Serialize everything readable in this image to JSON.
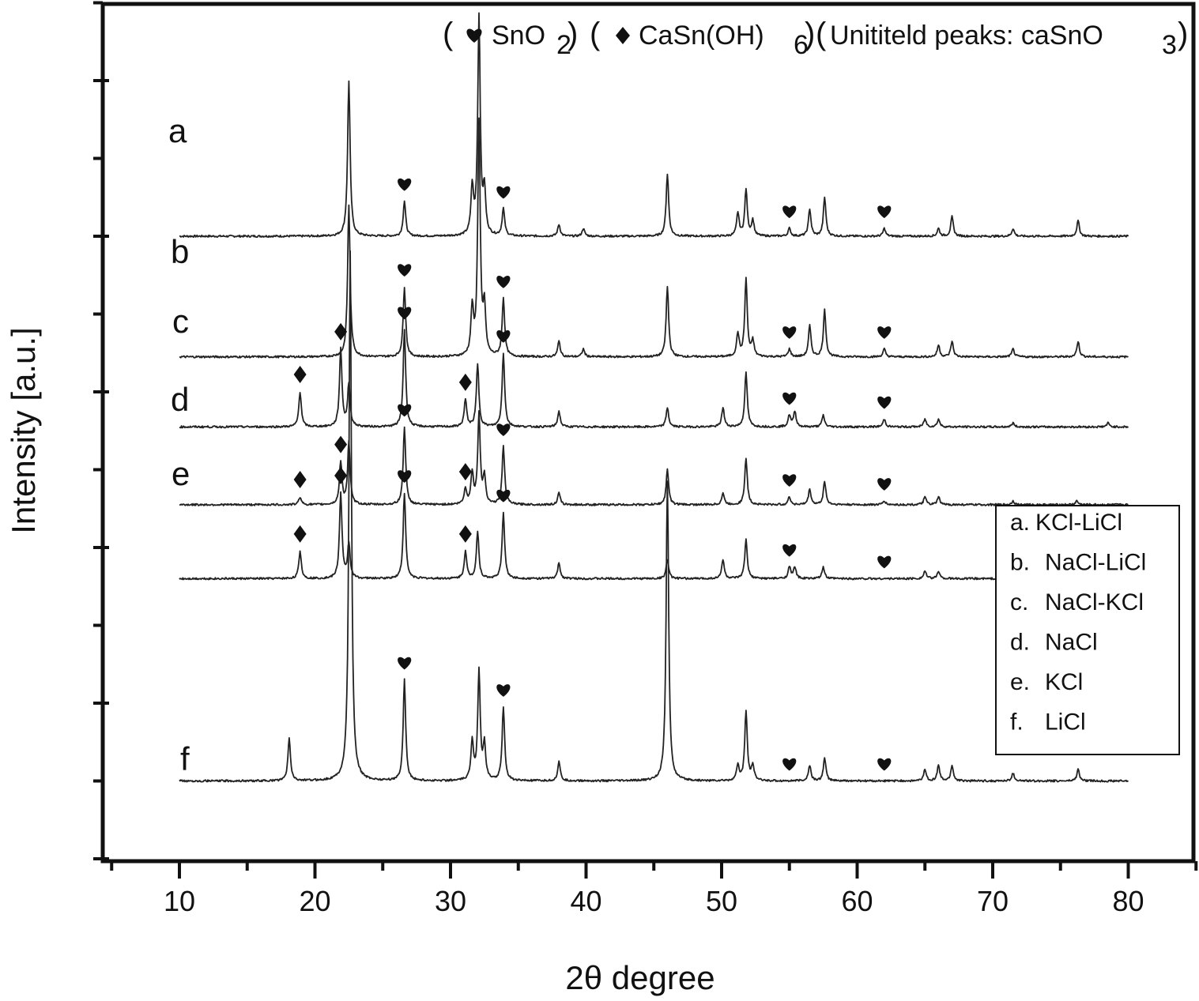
{
  "chart_data": {
    "type": "line",
    "xlabel": "2θ degree",
    "ylabel": "Intensity [a.u.]",
    "xlim": [
      5,
      85
    ],
    "x_ticks": [
      10,
      20,
      30,
      40,
      50,
      60,
      70,
      80
    ],
    "x_tick_labels": [
      "10",
      "20",
      "30",
      "40",
      "50",
      "60",
      "70",
      "80"
    ],
    "y_tick_labels_shown": false,
    "grid": false,
    "legend_position": "lower-right",
    "legend": [
      {
        "key": "a.",
        "label": "KCl-LiCl"
      },
      {
        "key": "b.",
        "label": "NaCl-LiCl"
      },
      {
        "key": "c.",
        "label": "NaCl-KCl"
      },
      {
        "key": "d.",
        "label": "NaCl"
      },
      {
        "key": "e.",
        "label": "KCl"
      },
      {
        "key": "f.",
        "label": "LiCl"
      }
    ],
    "marker_key": {
      "sno2_label": "SnO",
      "sno2_sub": "2",
      "casn_label": "CaSn(OH)",
      "casn_sub": "6",
      "unidentified_label": "Unititeld peaks: caSnO",
      "unidentified_sub": "3"
    },
    "x_range": [
      10,
      80
    ],
    "series": [
      {
        "name": "a",
        "offset": 8,
        "peaks": [
          [
            22.5,
            2.0
          ],
          [
            26.6,
            0.45
          ],
          [
            31.6,
            0.6
          ],
          [
            32.1,
            2.8
          ],
          [
            32.5,
            0.55
          ],
          [
            33.9,
            0.35
          ],
          [
            38.0,
            0.15
          ],
          [
            39.8,
            0.1
          ],
          [
            46.0,
            0.8
          ],
          [
            51.2,
            0.3
          ],
          [
            51.8,
            0.6
          ],
          [
            52.3,
            0.2
          ],
          [
            55.0,
            0.1
          ],
          [
            56.5,
            0.35
          ],
          [
            57.6,
            0.5
          ],
          [
            62.0,
            0.1
          ],
          [
            66.0,
            0.1
          ],
          [
            67.0,
            0.25
          ],
          [
            71.5,
            0.1
          ],
          [
            76.3,
            0.2
          ]
        ]
      },
      {
        "name": "b",
        "offset": 6.45,
        "peaks": [
          [
            22.5,
            1.95
          ],
          [
            26.6,
            0.9
          ],
          [
            31.6,
            0.6
          ],
          [
            32.1,
            3.0
          ],
          [
            32.5,
            0.6
          ],
          [
            33.9,
            0.75
          ],
          [
            38.0,
            0.2
          ],
          [
            39.8,
            0.1
          ],
          [
            46.0,
            0.9
          ],
          [
            51.2,
            0.3
          ],
          [
            51.8,
            1.0
          ],
          [
            52.3,
            0.2
          ],
          [
            55.0,
            0.1
          ],
          [
            56.5,
            0.4
          ],
          [
            57.6,
            0.6
          ],
          [
            62.0,
            0.1
          ],
          [
            66.0,
            0.15
          ],
          [
            67.0,
            0.2
          ],
          [
            71.5,
            0.1
          ],
          [
            76.3,
            0.2
          ]
        ]
      },
      {
        "name": "c",
        "offset": 5.55,
        "peaks": [
          [
            18.9,
            0.45
          ],
          [
            21.9,
            1.0
          ],
          [
            22.5,
            0.55
          ],
          [
            26.6,
            1.25
          ],
          [
            31.1,
            0.35
          ],
          [
            32.0,
            0.8
          ],
          [
            33.9,
            0.95
          ],
          [
            38.0,
            0.2
          ],
          [
            46.0,
            0.25
          ],
          [
            50.1,
            0.25
          ],
          [
            51.8,
            0.7
          ],
          [
            55.0,
            0.15
          ],
          [
            55.4,
            0.2
          ],
          [
            57.5,
            0.15
          ],
          [
            62.0,
            0.1
          ],
          [
            65.0,
            0.1
          ],
          [
            66.0,
            0.1
          ],
          [
            71.5,
            0.05
          ],
          [
            78.5,
            0.05
          ]
        ]
      },
      {
        "name": "d",
        "offset": 4.55,
        "peaks": [
          [
            18.9,
            0.1
          ],
          [
            21.9,
            0.55
          ],
          [
            22.5,
            0.8
          ],
          [
            26.6,
            1.0
          ],
          [
            31.1,
            0.2
          ],
          [
            31.6,
            0.4
          ],
          [
            32.1,
            1.15
          ],
          [
            32.5,
            0.35
          ],
          [
            33.9,
            0.75
          ],
          [
            38.0,
            0.15
          ],
          [
            46.0,
            0.45
          ],
          [
            50.1,
            0.15
          ],
          [
            51.8,
            0.6
          ],
          [
            55.0,
            0.1
          ],
          [
            56.5,
            0.2
          ],
          [
            57.6,
            0.3
          ],
          [
            62.0,
            0.05
          ],
          [
            65.0,
            0.1
          ],
          [
            66.0,
            0.1
          ],
          [
            71.5,
            0.05
          ],
          [
            76.2,
            0.05
          ]
        ]
      },
      {
        "name": "e",
        "offset": 3.6,
        "peaks": [
          [
            18.9,
            0.35
          ],
          [
            21.9,
            1.1
          ],
          [
            22.5,
            0.45
          ],
          [
            26.6,
            1.1
          ],
          [
            31.1,
            0.35
          ],
          [
            32.0,
            0.6
          ],
          [
            33.9,
            0.85
          ],
          [
            38.0,
            0.2
          ],
          [
            46.0,
            0.25
          ],
          [
            50.1,
            0.25
          ],
          [
            51.8,
            0.5
          ],
          [
            55.0,
            0.15
          ],
          [
            55.4,
            0.15
          ],
          [
            57.5,
            0.15
          ],
          [
            65.0,
            0.1
          ],
          [
            66.0,
            0.1
          ],
          [
            71.5,
            0.05
          ]
        ]
      },
      {
        "name": "f",
        "offset": 1.0,
        "peaks": [
          [
            18.1,
            0.55
          ],
          [
            22.6,
            6.8
          ],
          [
            26.6,
            1.3
          ],
          [
            31.6,
            0.5
          ],
          [
            32.1,
            1.4
          ],
          [
            32.5,
            0.45
          ],
          [
            33.9,
            0.95
          ],
          [
            38.0,
            0.25
          ],
          [
            46.0,
            3.85
          ],
          [
            51.2,
            0.2
          ],
          [
            51.8,
            0.9
          ],
          [
            52.3,
            0.2
          ],
          [
            56.5,
            0.2
          ],
          [
            57.6,
            0.3
          ],
          [
            65.0,
            0.15
          ],
          [
            66.0,
            0.2
          ],
          [
            67.0,
            0.2
          ],
          [
            71.5,
            0.1
          ],
          [
            76.3,
            0.15
          ]
        ]
      }
    ],
    "markers": [
      {
        "series": "a",
        "symbol": "heart",
        "x": [
          26.6,
          33.9,
          55.0,
          62.0
        ]
      },
      {
        "series": "b",
        "symbol": "heart",
        "x": [
          26.6,
          33.9,
          55.0,
          62.0
        ]
      },
      {
        "series": "c",
        "symbol": "diamond",
        "x": [
          18.9,
          21.9,
          31.1
        ]
      },
      {
        "series": "c",
        "symbol": "heart",
        "x": [
          26.6,
          33.9,
          55.0,
          62.0
        ]
      },
      {
        "series": "d",
        "symbol": "diamond",
        "x": [
          18.9,
          21.9,
          31.1
        ]
      },
      {
        "series": "d",
        "symbol": "heart",
        "x": [
          26.6,
          33.9,
          55.0,
          62.0
        ]
      },
      {
        "series": "e",
        "symbol": "diamond",
        "x": [
          18.9,
          21.9,
          31.1
        ]
      },
      {
        "series": "e",
        "symbol": "heart",
        "x": [
          26.6,
          33.9,
          55.0,
          62.0
        ]
      },
      {
        "series": "f",
        "symbol": "heart",
        "x": [
          26.6,
          33.9,
          55.0,
          62.0
        ]
      }
    ],
    "colors": {
      "line": "#222222",
      "axis": "#111111",
      "background": "#ffffff"
    }
  }
}
